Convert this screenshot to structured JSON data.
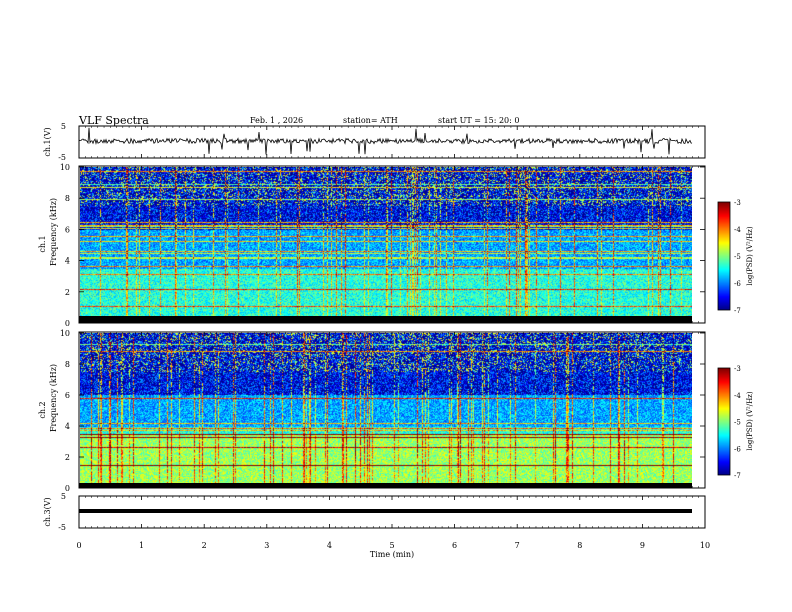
{
  "header": {
    "title": "VLF  Spectra",
    "date": "Feb. 1  , 2026",
    "station": "station= ATH",
    "start": "start  UT  =    15: 20: 0"
  },
  "chart_data": [
    {
      "type": "line",
      "panel": "ch1-waveform",
      "ylabel": "ch.1(V)",
      "ylim": [
        -5,
        5
      ],
      "yticks": [
        "5",
        "-5"
      ],
      "xlim": [
        0,
        10
      ],
      "series_note": "noisy time-domain trace centered slightly above 0 V with brief spikes"
    },
    {
      "type": "heatmap",
      "panel": "ch1-spectrogram",
      "ylabel_line1": "ch.1",
      "ylabel_line2": "Frequency  (kHz)",
      "ylim": [
        0,
        10
      ],
      "yticks": [
        "0",
        "2",
        "4",
        "6",
        "8",
        "10"
      ],
      "xlim": [
        0,
        10
      ],
      "data_end_min": 9.8,
      "colorbar": {
        "label": "log(PSD) (V²/Hz)",
        "range": [
          -7,
          -3
        ],
        "ticks": [
          "-3",
          "-4",
          "-5",
          "-6",
          "-7"
        ]
      }
    },
    {
      "type": "heatmap",
      "panel": "ch2-spectrogram",
      "ylabel_line1": "ch.2",
      "ylabel_line2": "Frequency  (kHz)",
      "ylim": [
        0,
        10
      ],
      "yticks": [
        "0",
        "2",
        "4",
        "6",
        "8",
        "10"
      ],
      "xlim": [
        0,
        10
      ],
      "data_end_min": 9.8,
      "colorbar": {
        "label": "log(PSD) (V²/Hz)",
        "range": [
          -7,
          -3
        ],
        "ticks": [
          "-3",
          "-4",
          "-5",
          "-6",
          "-7"
        ]
      }
    },
    {
      "type": "line",
      "panel": "ch3-waveform",
      "ylabel": "ch.3(V)",
      "ylim": [
        -5,
        5
      ],
      "yticks": [
        "5",
        "-5"
      ],
      "xlim": [
        0,
        10
      ],
      "series_note": "flat thick trace near -2 V"
    }
  ],
  "xaxis": {
    "label": "Time  (min)",
    "ticks": [
      "0",
      "1",
      "2",
      "3",
      "4",
      "5",
      "6",
      "7",
      "8",
      "9",
      "10"
    ]
  },
  "colors": {
    "jet_low": "#000080",
    "jet_mid": "#00c8ff",
    "jet_high": "#ff2000"
  }
}
